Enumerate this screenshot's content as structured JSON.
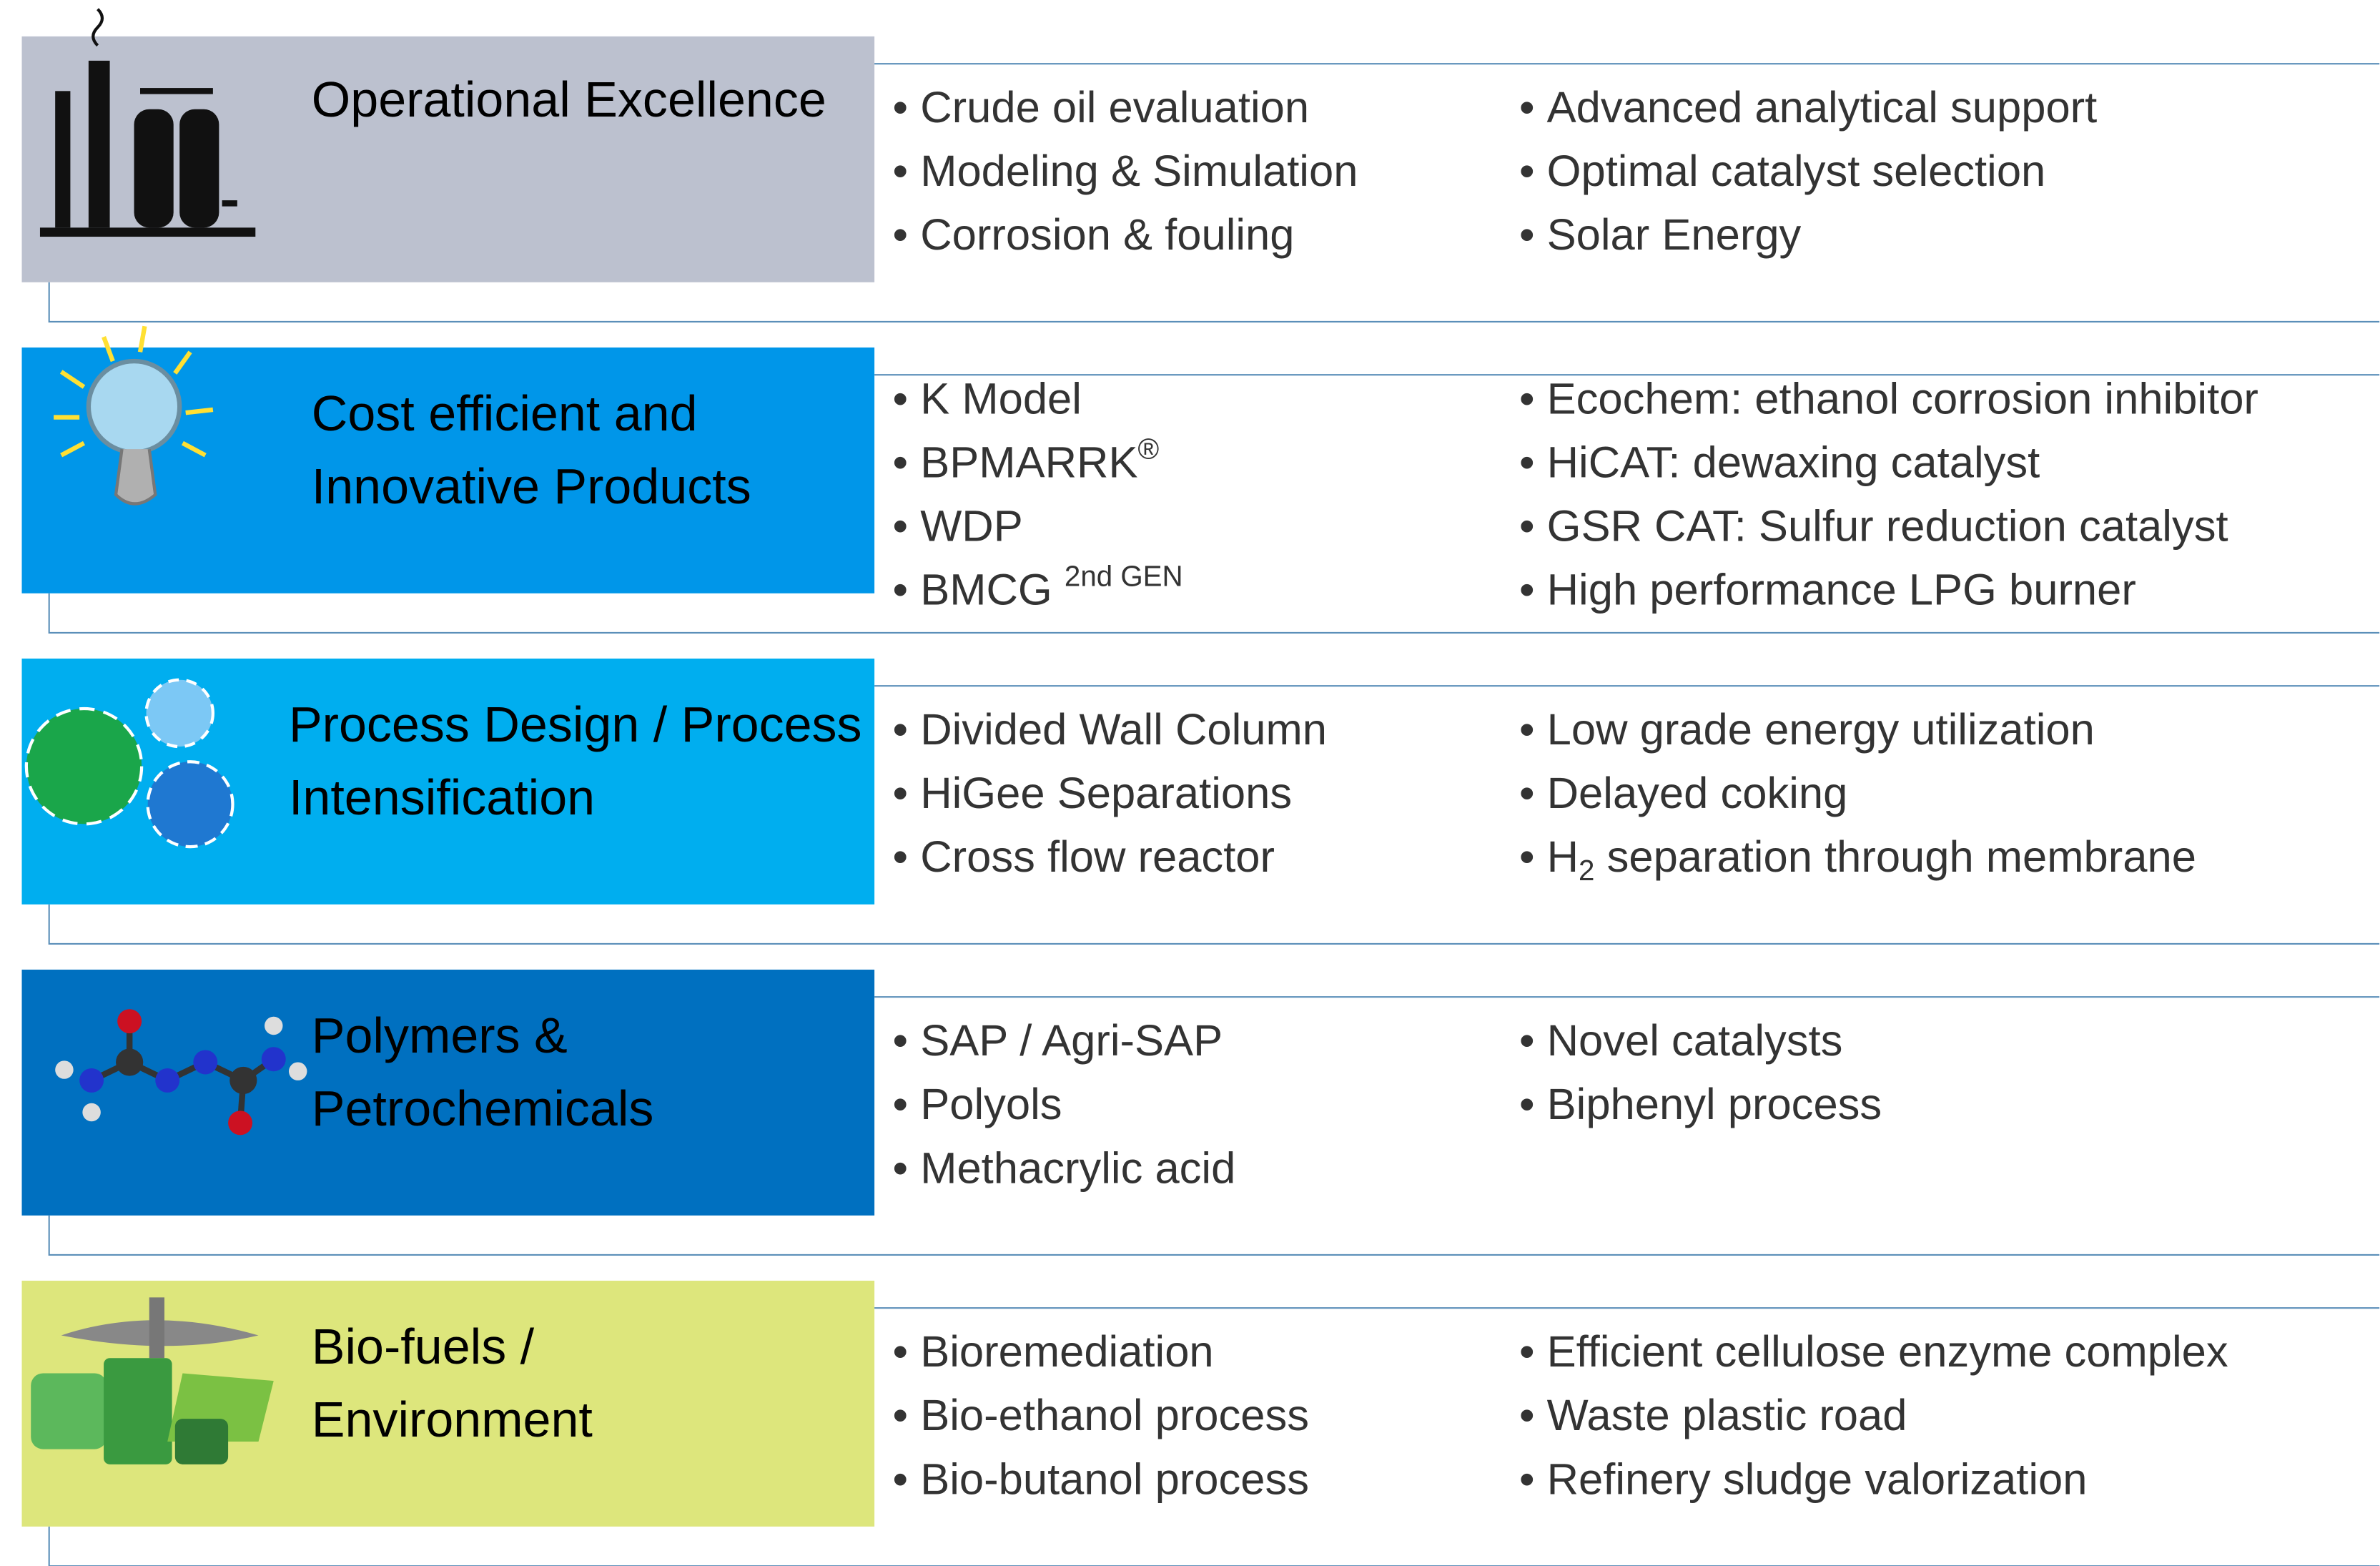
{
  "rows": [
    {
      "title": [
        "Operational Excellence"
      ],
      "left": [
        "Crude oil evaluation",
        "Modeling & Simulation",
        "Corrosion & fouling"
      ],
      "right": [
        "Advanced analytical support",
        "Optimal catalyst selection",
        "Solar Energy"
      ]
    },
    {
      "title": [
        "Cost efficient and",
        "Innovative Products"
      ],
      "left": [
        "K Model",
        {
          "text": "BPMARRK",
          "sup": "®"
        },
        "WDP",
        {
          "text": "BMCG ",
          "sup": "2nd  GEN"
        }
      ],
      "right": [
        "Ecochem: ethanol corrosion inhibitor",
        "HiCAT: dewaxing catalyst",
        "GSR CAT: Sulfur reduction catalyst",
        "High performance LPG burner"
      ]
    },
    {
      "title": [
        "Process Design / Process",
        "Intensification"
      ],
      "left": [
        "Divided Wall Column",
        "HiGee Separations",
        "Cross flow reactor"
      ],
      "right": [
        "Low grade energy utilization",
        "Delayed coking",
        {
          "text": "H",
          "sub": "2",
          "tail": " separation through membrane"
        }
      ]
    },
    {
      "title": [
        "Polymers &",
        "Petrochemicals"
      ],
      "left": [
        "SAP / Agri-SAP",
        "Polyols",
        "Methacrylic acid"
      ],
      "right": [
        "Novel catalysts",
        "Biphenyl process"
      ]
    },
    {
      "title": [
        "Bio-fuels /",
        "Environment"
      ],
      "left": [
        "Bioremediation",
        "Bio-ethanol process",
        "Bio-butanol process"
      ],
      "right": [
        "Efficient cellulose enzyme complex",
        "Waste plastic road",
        "Refinery sludge valorization"
      ]
    }
  ]
}
